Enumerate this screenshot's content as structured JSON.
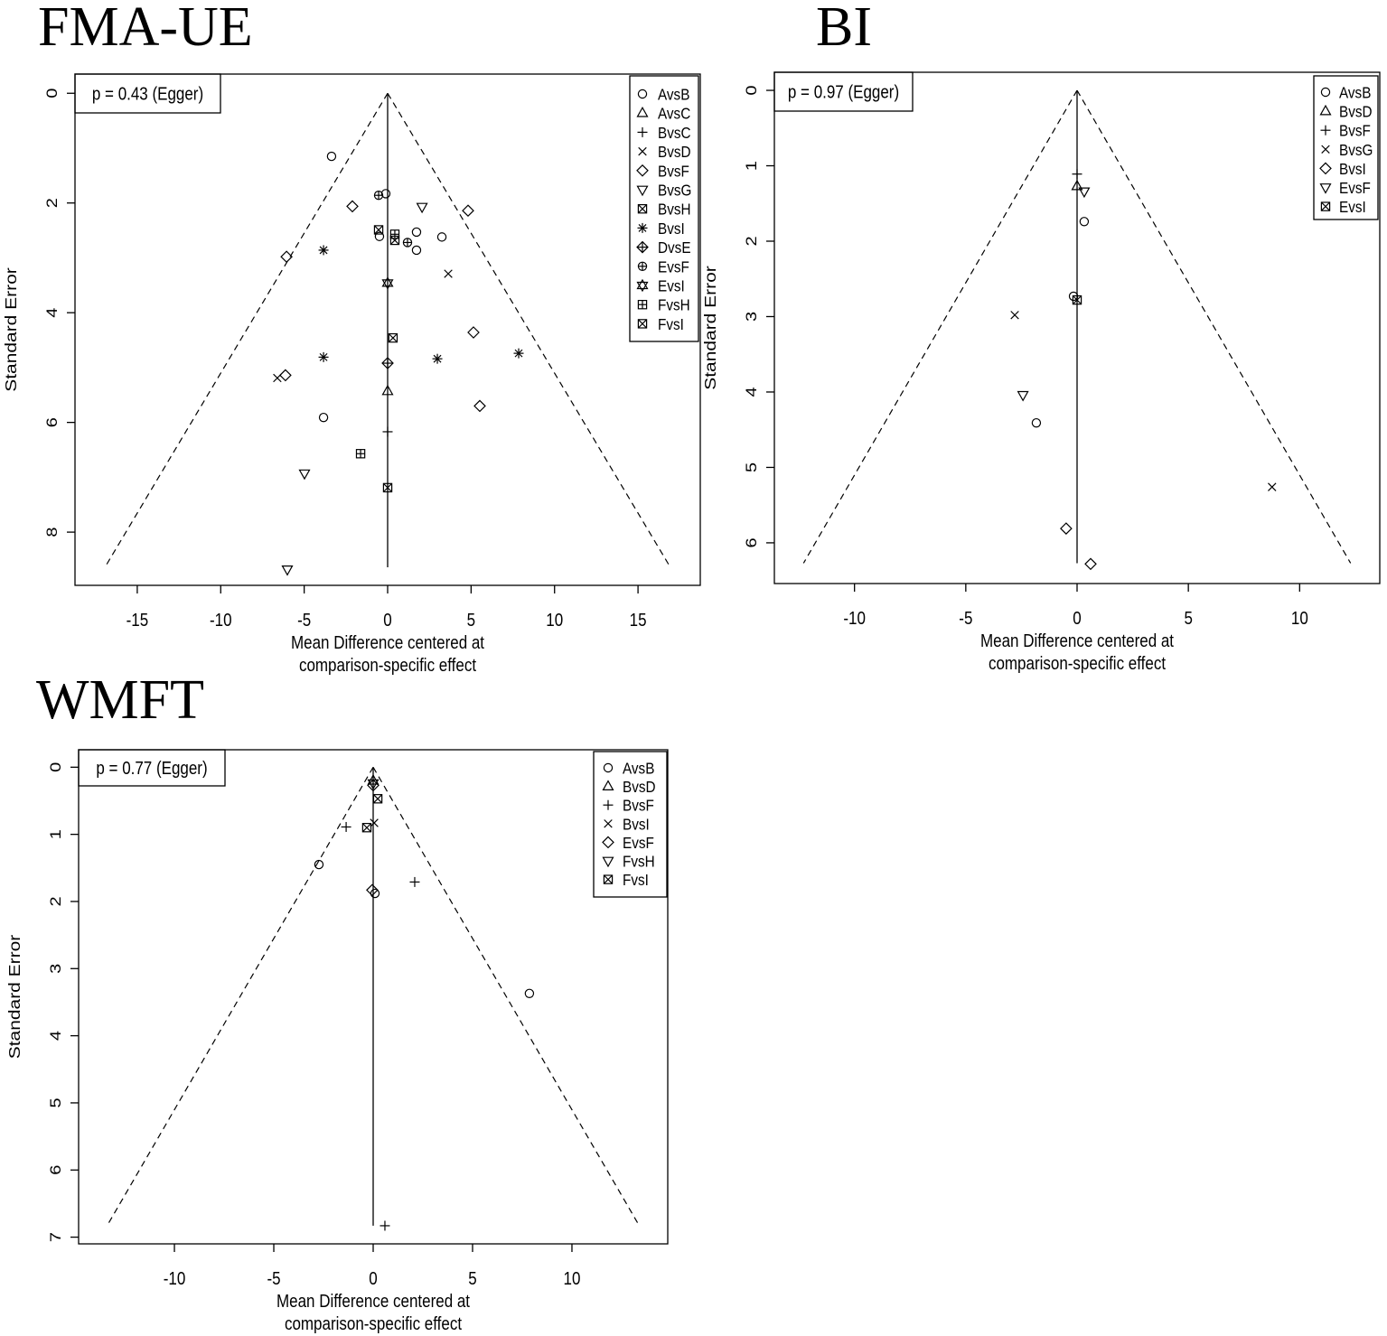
{
  "colors": {
    "ink": "#000000",
    "background": "#ffffff"
  },
  "chart_data": [
    {
      "type": "scatter",
      "subtype": "funnel",
      "title": "FMA-UE",
      "annotation": "p = 0.43 (Egger)",
      "annotation_position": "top-left",
      "xlabel": [
        "Mean Difference centered at",
        "comparison-specific effect"
      ],
      "ylabel": "Standard Error",
      "xlim": [
        -18.73,
        18.73
      ],
      "ylim": [
        -0.35,
        8.97
      ],
      "y_axis_inverted": true,
      "x_ticks": [
        -15,
        -10,
        -5,
        0,
        5,
        10,
        15
      ],
      "y_ticks": [
        0,
        2,
        4,
        6,
        8
      ],
      "grid": false,
      "legend_position": "top-right",
      "funnel": {
        "center": 0,
        "se_max": 8.64,
        "z": 1.96
      },
      "series": [
        {
          "name": "AvsB",
          "marker": "circle",
          "points": [
            [
              -3.36,
              1.15
            ],
            [
              -0.11,
              1.83
            ],
            [
              -0.49,
              2.61
            ],
            [
              1.73,
              2.53
            ],
            [
              3.25,
              2.62
            ],
            [
              1.73,
              2.86
            ],
            [
              -3.84,
              5.91
            ]
          ]
        },
        {
          "name": "AvsC",
          "marker": "triangle-up",
          "points": [
            [
              0,
              5.43
            ]
          ]
        },
        {
          "name": "BvsC",
          "marker": "plus",
          "points": [
            [
              0,
              6.17
            ]
          ]
        },
        {
          "name": "BvsD",
          "marker": "cross",
          "points": [
            [
              3.63,
              3.29
            ],
            [
              -6.61,
              5.19
            ]
          ]
        },
        {
          "name": "BvsF",
          "marker": "diamond",
          "points": [
            [
              -2.11,
              2.06
            ],
            [
              4.82,
              2.14
            ],
            [
              -6.06,
              2.98
            ],
            [
              5.14,
              4.36
            ],
            [
              -6.12,
              5.14
            ],
            [
              5.52,
              5.7
            ]
          ]
        },
        {
          "name": "BvsG",
          "marker": "triangle-down",
          "points": [
            [
              2.06,
              2.07
            ],
            [
              -4.98,
              6.93
            ],
            [
              -6.01,
              8.68
            ]
          ]
        },
        {
          "name": "BvsH",
          "marker": "square-cross",
          "points": [
            [
              -0.54,
              2.49
            ]
          ]
        },
        {
          "name": "BvsI",
          "marker": "asterisk",
          "points": [
            [
              -3.84,
              2.86
            ],
            [
              -3.84,
              4.81
            ],
            [
              2.98,
              4.84
            ],
            [
              7.85,
              4.74
            ]
          ]
        },
        {
          "name": "DvsE",
          "marker": "diamond-plus",
          "points": [
            [
              0,
              4.92
            ]
          ]
        },
        {
          "name": "EvsF",
          "marker": "circle-plus",
          "points": [
            [
              -0.54,
              1.86
            ],
            [
              1.19,
              2.72
            ]
          ]
        },
        {
          "name": "EvsI",
          "marker": "hexagram",
          "points": [
            [
              0,
              3.46
            ]
          ]
        },
        {
          "name": "FvsH",
          "marker": "square-plus",
          "points": [
            [
              0.43,
              2.57
            ],
            [
              -1.62,
              6.57
            ]
          ]
        },
        {
          "name": "FvsI",
          "marker": "square-cross",
          "points": [
            [
              0.43,
              2.68
            ],
            [
              0.32,
              4.46
            ],
            [
              0,
              7.19
            ]
          ]
        }
      ]
    },
    {
      "type": "scatter",
      "subtype": "funnel",
      "title": "BI",
      "annotation": "p = 0.97 (Egger)",
      "annotation_position": "top-left",
      "xlabel": [
        "Mean Difference centered at",
        "comparison-specific effect"
      ],
      "ylabel": "Standard Error",
      "xlim": [
        -13.6,
        13.6
      ],
      "ylim": [
        -0.24,
        6.54
      ],
      "y_axis_inverted": true,
      "x_ticks": [
        -10,
        -5,
        0,
        5,
        10
      ],
      "y_ticks": [
        0,
        1,
        2,
        3,
        4,
        5,
        6
      ],
      "grid": false,
      "legend_position": "top-right",
      "funnel": {
        "center": 0,
        "se_max": 6.27,
        "z": 1.96
      },
      "series": [
        {
          "name": "AvsB",
          "marker": "circle",
          "points": [
            [
              0.32,
              1.74
            ],
            [
              -0.16,
              2.73
            ],
            [
              -1.83,
              4.41
            ]
          ]
        },
        {
          "name": "BvsD",
          "marker": "triangle-up",
          "points": [
            [
              0,
              1.27
            ]
          ]
        },
        {
          "name": "BvsF",
          "marker": "plus",
          "points": [
            [
              0,
              1.11
            ]
          ]
        },
        {
          "name": "BvsG",
          "marker": "cross",
          "points": [
            [
              -2.8,
              2.98
            ],
            [
              8.76,
              5.26
            ]
          ]
        },
        {
          "name": "BvsI",
          "marker": "diamond",
          "points": [
            [
              -0.49,
              5.81
            ],
            [
              0.61,
              6.28
            ]
          ]
        },
        {
          "name": "EvsF",
          "marker": "triangle-down",
          "points": [
            [
              0.32,
              1.34
            ],
            [
              -2.43,
              4.04
            ]
          ]
        },
        {
          "name": "EvsI",
          "marker": "square-cross",
          "points": [
            [
              0,
              2.78
            ]
          ]
        }
      ]
    },
    {
      "type": "scatter",
      "subtype": "funnel",
      "title": "WMFT",
      "annotation": "p = 0.77 (Egger)",
      "annotation_position": "top-left",
      "xlabel": [
        "Mean Difference centered at",
        "comparison-specific effect"
      ],
      "ylabel": "Standard Error",
      "xlim": [
        -14.82,
        14.82
      ],
      "ylim": [
        -0.26,
        7.1
      ],
      "y_axis_inverted": true,
      "x_ticks": [
        -10,
        -5,
        0,
        5,
        10
      ],
      "y_ticks": [
        0,
        1,
        2,
        3,
        4,
        5,
        6,
        7
      ],
      "grid": false,
      "legend_position": "top-right",
      "funnel": {
        "center": 0,
        "se_max": 6.83,
        "z": 1.96
      },
      "series": [
        {
          "name": "AvsB",
          "marker": "circle",
          "points": [
            [
              -2.73,
              1.45
            ],
            [
              0.09,
              1.88
            ],
            [
              7.86,
              3.37
            ]
          ]
        },
        {
          "name": "BvsD",
          "marker": "triangle-up",
          "points": [
            [
              0,
              0.2
            ]
          ]
        },
        {
          "name": "BvsF",
          "marker": "plus",
          "points": [
            [
              -1.36,
              0.89
            ],
            [
              2.09,
              1.71
            ],
            [
              0.59,
              6.83
            ]
          ]
        },
        {
          "name": "BvsI",
          "marker": "cross",
          "points": [
            [
              0.05,
              0.83
            ]
          ]
        },
        {
          "name": "EvsF",
          "marker": "diamond",
          "points": [
            [
              0,
              0.27
            ],
            [
              -0.05,
              1.83
            ]
          ]
        },
        {
          "name": "FvsH",
          "marker": "triangle-down",
          "points": [
            [
              0,
              0.24
            ]
          ]
        },
        {
          "name": "FvsI",
          "marker": "square-cross",
          "points": [
            [
              0.23,
              0.47
            ],
            [
              -0.32,
              0.9
            ]
          ]
        }
      ]
    }
  ]
}
